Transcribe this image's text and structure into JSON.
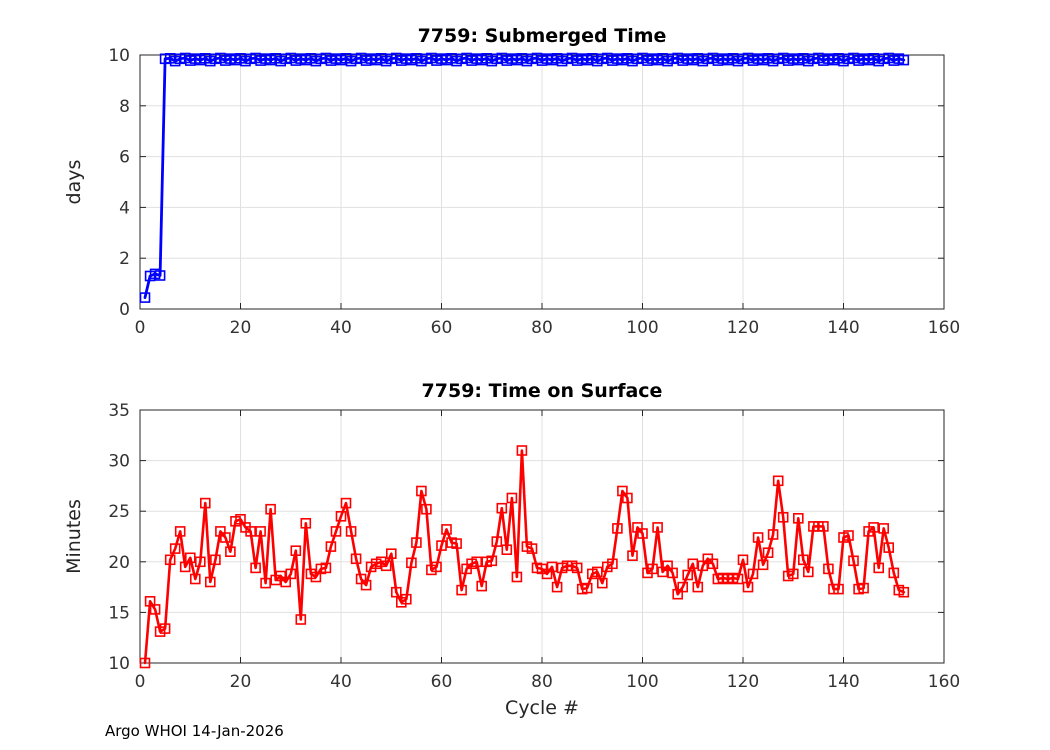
{
  "figure": {
    "background": "#ffffff",
    "footer": "Argo WHOI 14-Jan-2026",
    "colors": {
      "axis": "#262626",
      "grid": "#e0e0e0",
      "tick_label": "#333333"
    }
  },
  "chart_data": [
    {
      "id": "submerged-time",
      "type": "line",
      "title": "7759: Submerged Time",
      "xlabel": "",
      "ylabel": "days",
      "xlim": [
        0,
        160
      ],
      "ylim": [
        0,
        10
      ],
      "xticks": [
        0,
        20,
        40,
        60,
        80,
        100,
        120,
        140,
        160
      ],
      "yticks": [
        0,
        2,
        4,
        6,
        8,
        10
      ],
      "grid": true,
      "legend": null,
      "series": [
        {
          "name": "submerged-days",
          "color": "#0000ff",
          "marker": "open-square",
          "marker_size": 9,
          "line_width": 2.8,
          "x_start": 1,
          "values": [
            0.45,
            1.3,
            1.38,
            1.32,
            9.85,
            9.87,
            9.76,
            9.85,
            9.88,
            9.78,
            9.86,
            9.8,
            9.87,
            9.76,
            9.85,
            9.88,
            9.78,
            9.86,
            9.8,
            9.87,
            9.76,
            9.85,
            9.88,
            9.78,
            9.86,
            9.8,
            9.87,
            9.76,
            9.85,
            9.88,
            9.78,
            9.86,
            9.8,
            9.87,
            9.76,
            9.85,
            9.88,
            9.78,
            9.86,
            9.8,
            9.87,
            9.76,
            9.85,
            9.88,
            9.78,
            9.86,
            9.8,
            9.87,
            9.76,
            9.85,
            9.88,
            9.78,
            9.86,
            9.8,
            9.87,
            9.76,
            9.85,
            9.88,
            9.78,
            9.86,
            9.8,
            9.87,
            9.76,
            9.85,
            9.88,
            9.78,
            9.86,
            9.8,
            9.87,
            9.76,
            9.85,
            9.88,
            9.78,
            9.86,
            9.8,
            9.87,
            9.76,
            9.85,
            9.88,
            9.78,
            9.86,
            9.8,
            9.87,
            9.76,
            9.85,
            9.88,
            9.78,
            9.86,
            9.8,
            9.87,
            9.76,
            9.85,
            9.88,
            9.78,
            9.86,
            9.8,
            9.87,
            9.76,
            9.85,
            9.88,
            9.78,
            9.86,
            9.8,
            9.87,
            9.76,
            9.85,
            9.88,
            9.78,
            9.86,
            9.8,
            9.87,
            9.76,
            9.85,
            9.88,
            9.78,
            9.86,
            9.8,
            9.87,
            9.76,
            9.85,
            9.88,
            9.78,
            9.86,
            9.8,
            9.87,
            9.76,
            9.85,
            9.88,
            9.78,
            9.86,
            9.8,
            9.87,
            9.76,
            9.85,
            9.88,
            9.78,
            9.86,
            9.8,
            9.87,
            9.76,
            9.85,
            9.88,
            9.78,
            9.86,
            9.8,
            9.87,
            9.76,
            9.85,
            9.88,
            9.78,
            9.86,
            9.8
          ]
        }
      ]
    },
    {
      "id": "time-on-surface",
      "type": "line",
      "title": "7759: Time on Surface",
      "xlabel": "Cycle #",
      "ylabel": "Minutes",
      "xlim": [
        0,
        160
      ],
      "ylim": [
        10,
        35
      ],
      "xticks": [
        0,
        20,
        40,
        60,
        80,
        100,
        120,
        140,
        160
      ],
      "yticks": [
        10,
        15,
        20,
        25,
        30,
        35
      ],
      "grid": true,
      "legend": null,
      "series": [
        {
          "name": "surface-minutes",
          "color": "#ff0000",
          "marker": "open-square",
          "marker_size": 9,
          "line_width": 2.6,
          "x_start": 1,
          "values": [
            10.0,
            16.1,
            15.3,
            13.1,
            13.4,
            20.2,
            21.3,
            23.0,
            19.5,
            20.4,
            18.3,
            20.0,
            25.8,
            18.0,
            20.2,
            23.0,
            22.4,
            21.0,
            24.0,
            24.2,
            23.4,
            23.0,
            19.4,
            23.0,
            17.9,
            25.2,
            18.2,
            18.6,
            18.0,
            18.8,
            21.1,
            14.3,
            23.8,
            18.8,
            18.5,
            19.3,
            19.4,
            21.5,
            23.0,
            24.5,
            25.8,
            23.0,
            20.3,
            18.3,
            17.7,
            19.5,
            19.8,
            20.0,
            19.6,
            20.8,
            17.0,
            16.0,
            16.3,
            19.9,
            21.9,
            27.0,
            25.2,
            19.2,
            19.5,
            21.6,
            23.2,
            21.9,
            21.8,
            17.2,
            19.3,
            19.8,
            20.0,
            17.6,
            20.0,
            20.1,
            22.0,
            25.3,
            21.2,
            26.3,
            18.5,
            31.0,
            21.5,
            21.3,
            19.4,
            19.3,
            18.8,
            19.5,
            17.5,
            19.4,
            19.6,
            19.6,
            19.4,
            17.3,
            17.4,
            18.8,
            19.0,
            17.9,
            19.5,
            19.8,
            23.3,
            27.0,
            26.3,
            20.6,
            23.4,
            22.8,
            18.9,
            19.3,
            23.4,
            19.0,
            19.6,
            18.9,
            16.8,
            17.5,
            18.7,
            19.8,
            17.5,
            19.6,
            20.3,
            19.8,
            18.3,
            18.4,
            18.3,
            18.4,
            18.3,
            20.2,
            17.5,
            18.8,
            22.4,
            19.7,
            20.9,
            22.7,
            28.0,
            24.4,
            18.6,
            18.8,
            24.3,
            20.2,
            19.0,
            23.5,
            23.5,
            23.5,
            19.3,
            17.3,
            17.3,
            22.4,
            22.6,
            20.1,
            17.3,
            17.4,
            23.0,
            23.4,
            19.4,
            23.3,
            21.4,
            18.9,
            17.2,
            17.0
          ]
        }
      ]
    }
  ]
}
